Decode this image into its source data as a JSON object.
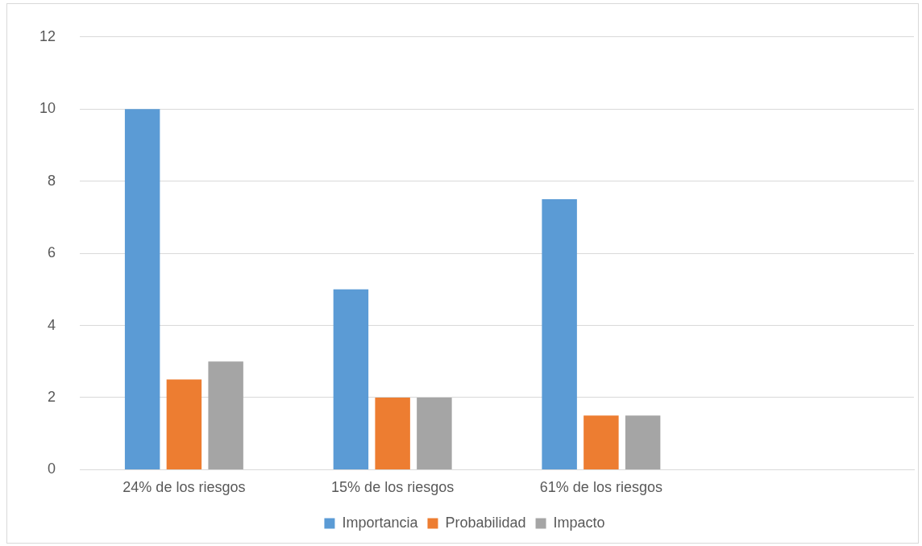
{
  "chart_data": {
    "type": "bar",
    "categories": [
      "24% de los riesgos",
      "15% de los riesgos",
      "61% de los riesgos",
      null
    ],
    "series": [
      {
        "name": "Importancia",
        "color": "#5b9bd5",
        "values": [
          10,
          5,
          7.5,
          null
        ]
      },
      {
        "name": "Probabilidad",
        "color": "#ed7d31",
        "values": [
          2.5,
          2,
          1.5,
          null
        ]
      },
      {
        "name": "Impacto",
        "color": "#a5a5a5",
        "values": [
          3,
          2,
          1.5,
          null
        ]
      }
    ],
    "ylim": [
      0,
      12
    ],
    "yticks": [
      0,
      2,
      4,
      6,
      8,
      10,
      12
    ],
    "grid": "y",
    "legend": "bottom"
  }
}
